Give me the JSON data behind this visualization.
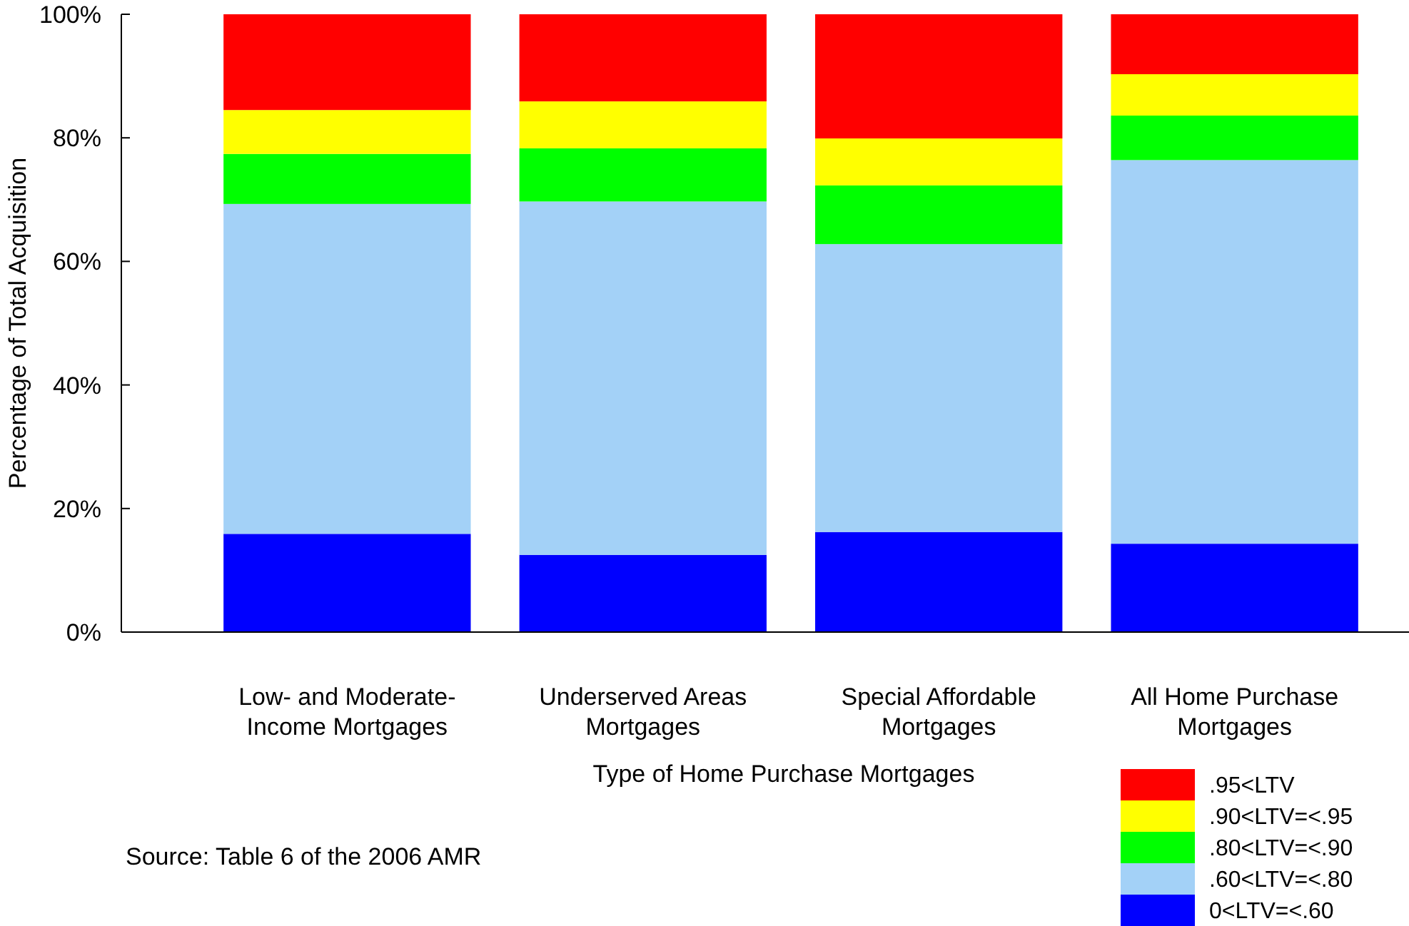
{
  "chart_data": {
    "type": "bar",
    "stacked": true,
    "xlabel": "Type of Home Purchase Mortgages",
    "ylabel": "Percentage of Total Acquisition",
    "categories": [
      "Low- and Moderate-Income Mortgages",
      "Underserved Areas Mortgages",
      "Special Affordable Mortgages",
      "All Home Purchase Mortgages"
    ],
    "series": [
      {
        "name": "0<LTV=<.60",
        "color": "#0000ff",
        "values": [
          15.9,
          12.5,
          16.2,
          14.3
        ]
      },
      {
        "name": ".60<LTV=<.80",
        "color": "#a3d1f7",
        "values": [
          53.4,
          57.2,
          46.6,
          62.1
        ]
      },
      {
        "name": ".80<LTV=<.90",
        "color": "#00ff00",
        "values": [
          8.1,
          8.6,
          9.5,
          7.2
        ]
      },
      {
        "name": ".90<LTV=<.95",
        "color": "#ffff00",
        "values": [
          7.1,
          7.6,
          7.6,
          6.7
        ]
      },
      {
        "name": ".95<LTV",
        "color": "#ff0000",
        "values": [
          15.5,
          14.1,
          20.1,
          9.7
        ]
      }
    ],
    "ylim": [
      0,
      100
    ],
    "yticks": [
      {
        "value": 0,
        "label": "0%"
      },
      {
        "value": 20,
        "label": "20%"
      },
      {
        "value": 40,
        "label": "40%"
      },
      {
        "value": 60,
        "label": "60%"
      },
      {
        "value": 80,
        "label": "80%"
      },
      {
        "value": 100,
        "label": "100%"
      }
    ],
    "grid": false,
    "legend": "bottom right",
    "annotations": [
      "Source: Table 6 of the 2006 AMR"
    ]
  }
}
